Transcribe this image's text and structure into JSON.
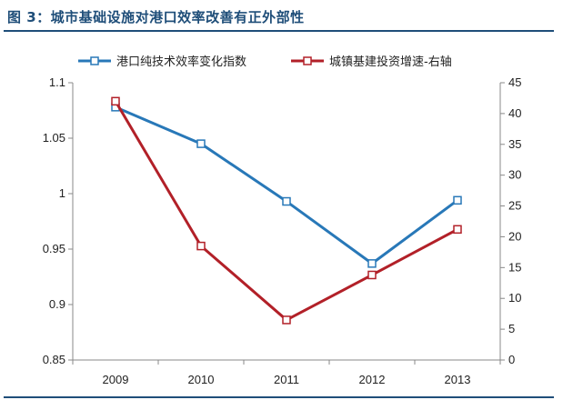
{
  "title": "图 3：城市基础设施对港口效率改善有正外部性",
  "chart_data": {
    "type": "line",
    "categories": [
      "2009",
      "2010",
      "2011",
      "2012",
      "2013"
    ],
    "series": [
      {
        "name": "港口纯技术效率变化指数",
        "axis": "left",
        "color": "#2878b8",
        "values": [
          1.078,
          1.045,
          0.993,
          0.937,
          0.994
        ]
      },
      {
        "name": "城镇基建投资增速-右轴",
        "axis": "right",
        "color": "#b22028",
        "values": [
          42,
          18.5,
          6.5,
          13.8,
          21.2
        ]
      }
    ],
    "y_left": {
      "min": 0.85,
      "max": 1.1,
      "ticks": [
        "0.85",
        "0.9",
        "0.95",
        "1",
        "1.05",
        "1.1"
      ]
    },
    "y_right": {
      "min": 0,
      "max": 45,
      "ticks": [
        "0",
        "5",
        "10",
        "15",
        "20",
        "25",
        "30",
        "35",
        "40",
        "45"
      ]
    },
    "legend_position": "top",
    "grid": false
  }
}
